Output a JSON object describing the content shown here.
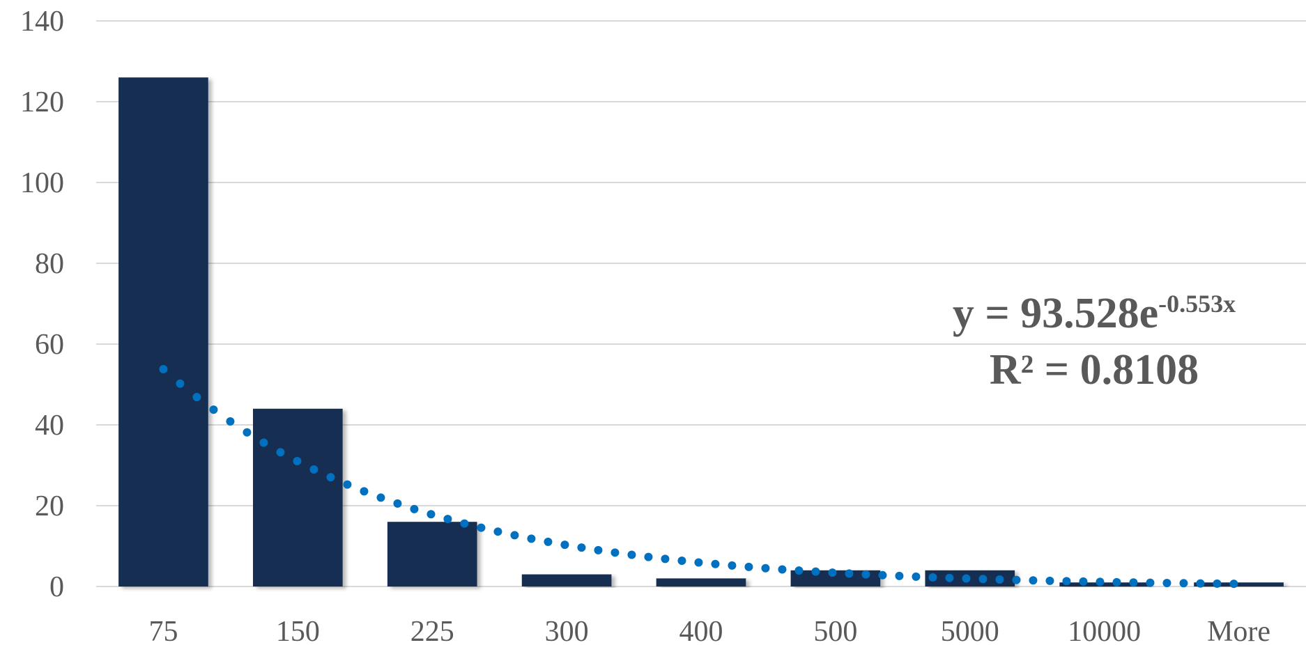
{
  "chart_data": {
    "type": "bar",
    "categories": [
      "75",
      "150",
      "225",
      "300",
      "400",
      "500",
      "5000",
      "10000",
      "More"
    ],
    "values": [
      126,
      44,
      16,
      3,
      2,
      4,
      4,
      1,
      1
    ],
    "ylim": [
      0,
      140
    ],
    "yticks": [
      0,
      20,
      40,
      60,
      80,
      100,
      120,
      140
    ],
    "grid": true,
    "colors": {
      "bar": "#132F51",
      "trendline": "#0070C0",
      "grid": "#D9D9D9",
      "text": "#595959"
    },
    "trendline": {
      "type": "exponential",
      "a": 93.528,
      "b": -0.553,
      "equation_prefix": "y = 93.528e",
      "equation_exponent": "-0.553x",
      "r_squared_label": "R² = 0.8108"
    }
  }
}
